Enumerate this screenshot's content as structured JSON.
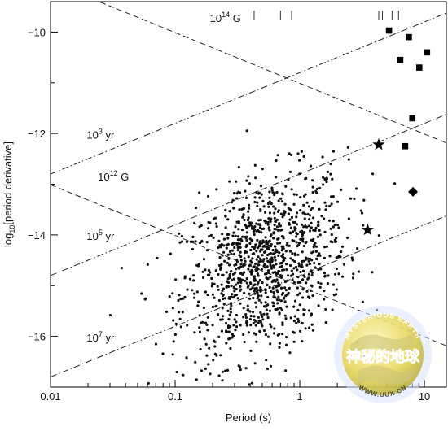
{
  "chart_data": {
    "type": "scatter",
    "xlabel": "Period (s)",
    "ylabel": "log10[period derivative]",
    "xscale": "log",
    "xlim": [
      0.01,
      15
    ],
    "ylim": [
      -17.0,
      -9.4
    ],
    "xticks": [
      {
        "value": 0.01,
        "label": "0.01"
      },
      {
        "value": 0.1,
        "label": "0.1"
      },
      {
        "value": 1,
        "label": "1"
      },
      {
        "value": 10,
        "label": "10"
      }
    ],
    "yticks": [
      {
        "value": -10,
        "label": "−10"
      },
      {
        "value": -12,
        "label": "−12"
      },
      {
        "value": -14,
        "label": "−14"
      },
      {
        "value": -16,
        "label": "−16"
      }
    ],
    "grid": false,
    "lines": [
      {
        "label_base": "10",
        "label_exp": "14",
        "label_unit": " G",
        "style": "dashed",
        "kind": "field",
        "B": 100000000000000.0,
        "label_x": 0.19,
        "label_y": -9.8
      },
      {
        "label_base": "10",
        "label_exp": "12",
        "label_unit": " G",
        "style": "dashed",
        "kind": "field",
        "B": 1000000000000.0,
        "label_x": 0.024,
        "label_y": -12.93
      },
      {
        "label_base": "10",
        "label_exp": "3",
        "label_unit": " yr",
        "style": "dashdot",
        "kind": "age",
        "yr": 1000.0,
        "label_x": 0.0195,
        "label_y": -12.1
      },
      {
        "label_base": "10",
        "label_exp": "5",
        "label_unit": " yr",
        "style": "dashdot",
        "kind": "age",
        "yr": 100000.0,
        "label_x": 0.0195,
        "label_y": -14.1
      },
      {
        "label_base": "10",
        "label_exp": "7",
        "label_unit": " yr",
        "style": "dashdot",
        "kind": "age",
        "yr": 10000000.0,
        "label_x": 0.0195,
        "label_y": -16.1
      }
    ],
    "series": [
      {
        "marker": "square",
        "points": [
          [
            5.2,
            -9.97
          ],
          [
            7.5,
            -10.1
          ],
          [
            10.5,
            -10.4
          ],
          [
            6.4,
            -10.55
          ],
          [
            9.1,
            -10.7
          ],
          [
            8.0,
            -11.7
          ],
          [
            7.0,
            -12.25
          ]
        ]
      },
      {
        "marker": "star",
        "points": [
          [
            4.3,
            -12.22
          ],
          [
            3.5,
            -13.9
          ]
        ]
      },
      {
        "marker": "diamond",
        "points": [
          [
            8.1,
            -13.15
          ]
        ]
      },
      {
        "marker": "dot",
        "generated": true,
        "count": 1150,
        "center_log_period": -0.28,
        "spread_log_period": 0.33,
        "center_value": -14.6,
        "spread_value": 0.85
      }
    ],
    "top_ticks": [
      0.43,
      0.7,
      0.86,
      4.3,
      4.6,
      5.5,
      6.2
    ]
  },
  "watermark": {
    "top_text": "MYSTERIOUS EARTH",
    "chinese_text": "神秘的地球",
    "url": "WWW.UUX.CN"
  }
}
